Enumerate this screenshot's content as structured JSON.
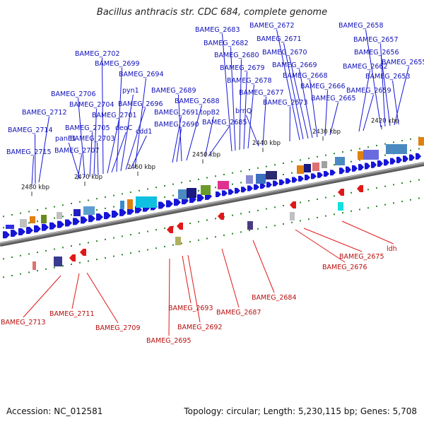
{
  "title": "Bacillus anthracis str. CDC 684, complete genome",
  "accession_label": "Accession: NC_012581",
  "summary_label": "Topology: circular; Length: 5,230,115 bp; Genes: 5,708",
  "colors": {
    "forward": "#1515d8",
    "reverse": "#e01818",
    "label_forward": "#1010b8",
    "label_reverse": "#b80f0f",
    "backbone": "#7a7a7a",
    "cog_dot": "#2a8a2a"
  },
  "ticks": [
    {
      "label": "2480 kbp"
    },
    {
      "label": "2470 kbp"
    },
    {
      "label": "2460 kbp"
    },
    {
      "label": "2450 kbp"
    },
    {
      "label": "2440 kbp"
    },
    {
      "label": "2430 kbp"
    },
    {
      "label": "2420 kbp"
    }
  ],
  "forward_labels": [
    "BAMEG_2715",
    "BAMEG_2714",
    "BAMEG_2712",
    "BAMEG_2707",
    "panE1",
    "BAMEG_2706",
    "BAMEG_2705",
    "BAMEG_2704",
    "BAMEG_2703",
    "BAMEG_2702",
    "BAMEG_2701",
    "deoC",
    "BAMEG_2699",
    "pyn1",
    "BAMEG_2696",
    "cdd1",
    "BAMEG_2694",
    "BAMEG_2691",
    "BAMEG_2690",
    "BAMEG_2689",
    "BAMEG_2688",
    "topB2",
    "BAMEG_2685",
    "BAMEG_2683",
    "BAMEG_2682",
    "BAMEG_2680",
    "BAMEG_2679",
    "BAMEG_2678",
    "brnQ",
    "BAMEG_2677",
    "BAMEG_2673",
    "BAMEG_2672",
    "BAMEG_2671",
    "BAMEG_2670",
    "BAMEG_2669",
    "BAMEG_2668",
    "BAMEG_2666",
    "BAMEG_2665",
    "BAMEG_2662",
    "BAMEG_2659",
    "BAMEG_2658",
    "BAMEG_2657",
    "BAMEG_2656",
    "BAMEG_2653",
    "BAMEG_2655"
  ],
  "reverse_labels": [
    "BAMEG_2713",
    "BAMEG_2711",
    "BAMEG_2709",
    "BAMEG_2695",
    "BAMEG_2693",
    "BAMEG_2692",
    "BAMEG_2687",
    "BAMEG_2684",
    "BAMEG_2676",
    "BAMEG_2675",
    "ldh"
  ]
}
